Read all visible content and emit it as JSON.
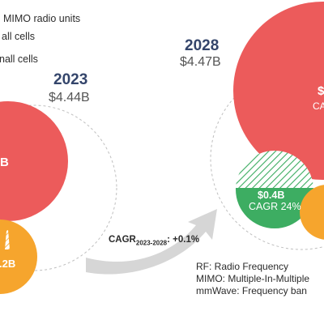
{
  "legend": {
    "items": [
      "MIMO radio units",
      "all cells",
      "nall cells"
    ]
  },
  "years": [
    {
      "year": "2023",
      "total": "$4.44B"
    },
    {
      "year": "2028",
      "total": "$4.47B"
    }
  ],
  "overall_cagr": {
    "prefix": "CAGR",
    "period": "2023-2028",
    "suffix": ": +0.1%"
  },
  "notes": [
    "RF: Radio Frequency",
    "MIMO: Multiple-In-Multiple",
    "mmWave: Frequency ban"
  ],
  "colors": {
    "red": "#ec5b5b",
    "orange": "#f6a52d",
    "green": "#3dad62",
    "navy": "#34456b",
    "arrow": "#d6d6d6"
  },
  "chart_data": {
    "type": "bubble",
    "title": "",
    "series": [
      {
        "year": "2023",
        "total": "$4.44B",
        "bubbles": [
          {
            "segment": "red",
            "value_label": "B",
            "cagr_label": ""
          },
          {
            "segment": "orange",
            "value_label": ".2B",
            "cagr_label": ""
          }
        ]
      },
      {
        "year": "2028",
        "total": "$4.47B",
        "bubbles": [
          {
            "segment": "red",
            "value_label": "$",
            "cagr_label": "CAG"
          },
          {
            "segment": "green",
            "value_label": "$0.4B",
            "cagr_label": "CAGR 24%"
          },
          {
            "segment": "orange",
            "value_label": "",
            "cagr_label": ""
          }
        ]
      }
    ],
    "overall_cagr": "+0.1%"
  }
}
